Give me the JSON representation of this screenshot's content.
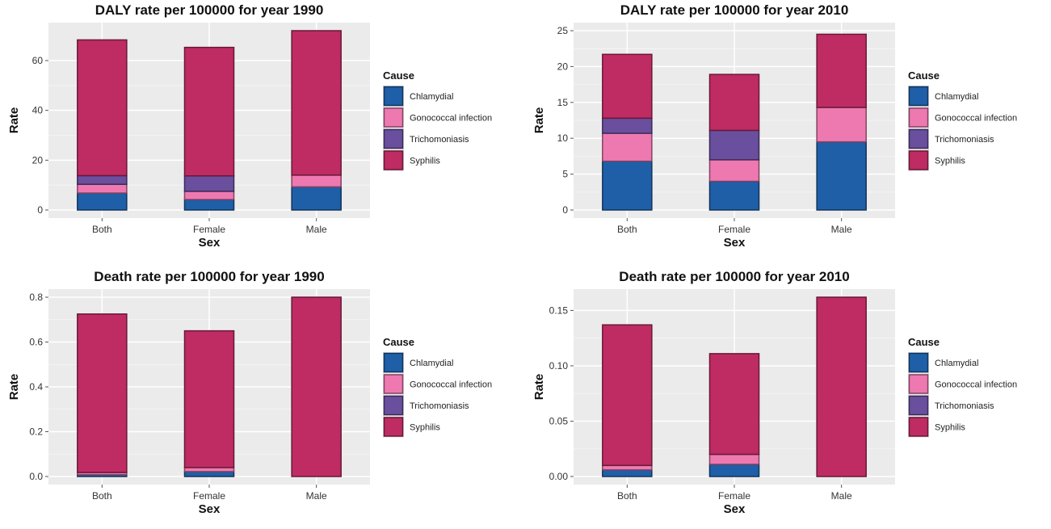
{
  "legend": {
    "title": "Cause",
    "items": [
      {
        "label": "Chlamydial",
        "color": "#1f5fa8"
      },
      {
        "label": "Gonococcal infection",
        "color": "#ee79b1"
      },
      {
        "label": "Trichomoniasis",
        "color": "#6a4f9e"
      },
      {
        "label": "Syphilis",
        "color": "#be2c63"
      }
    ]
  },
  "chart_data": [
    {
      "type": "bar",
      "stacked": true,
      "title": "DALY rate per 100000 for year 1990",
      "xlabel": "Sex",
      "ylabel": "Rate",
      "categories": [
        "Both",
        "Female",
        "Male"
      ],
      "ylim": [
        0,
        72
      ],
      "yticks": [
        0,
        20,
        40,
        60
      ],
      "ytick_labels": [
        "0",
        "20",
        "40",
        "60"
      ],
      "series": [
        {
          "name": "Chlamydial",
          "values": [
            6.8,
            4.2,
            9.3
          ]
        },
        {
          "name": "Gonococcal infection",
          "values": [
            3.5,
            3.3,
            4.7
          ]
        },
        {
          "name": "Trichomoniasis",
          "values": [
            3.5,
            6.2,
            0
          ]
        },
        {
          "name": "Syphilis",
          "values": [
            54.5,
            51.6,
            58.0
          ]
        }
      ],
      "grid": true,
      "legend_position": "right"
    },
    {
      "type": "bar",
      "stacked": true,
      "title": "DALY rate per 100000 for year 2010",
      "xlabel": "Sex",
      "ylabel": "Rate",
      "categories": [
        "Both",
        "Female",
        "Male"
      ],
      "ylim": [
        0,
        25
      ],
      "yticks": [
        0,
        5,
        10,
        15,
        20,
        25
      ],
      "ytick_labels": [
        "0",
        "5",
        "10",
        "15",
        "20",
        "25"
      ],
      "series": [
        {
          "name": "Chlamydial",
          "values": [
            6.8,
            4.0,
            9.5
          ]
        },
        {
          "name": "Gonococcal infection",
          "values": [
            3.9,
            3.0,
            4.8
          ]
        },
        {
          "name": "Trichomoniasis",
          "values": [
            2.1,
            4.1,
            0
          ]
        },
        {
          "name": "Syphilis",
          "values": [
            8.9,
            7.8,
            10.2
          ]
        }
      ],
      "grid": true,
      "legend_position": "right"
    },
    {
      "type": "bar",
      "stacked": true,
      "title": "Death rate per 100000 for year 1990",
      "xlabel": "Sex",
      "ylabel": "Rate",
      "categories": [
        "Both",
        "Female",
        "Male"
      ],
      "ylim": [
        0,
        0.8
      ],
      "yticks": [
        0,
        0.2,
        0.4,
        0.6,
        0.8
      ],
      "ytick_labels": [
        "0.0",
        "0.2",
        "0.4",
        "0.6",
        "0.8"
      ],
      "series": [
        {
          "name": "Chlamydial",
          "values": [
            0.008,
            0.022,
            0
          ]
        },
        {
          "name": "Gonococcal infection",
          "values": [
            0.01,
            0.018,
            0
          ]
        },
        {
          "name": "Trichomoniasis",
          "values": [
            0,
            0,
            0
          ]
        },
        {
          "name": "Syphilis",
          "values": [
            0.707,
            0.61,
            0.8
          ]
        }
      ],
      "grid": true,
      "legend_position": "right"
    },
    {
      "type": "bar",
      "stacked": true,
      "title": "Death rate per 100000 for year 2010",
      "xlabel": "Sex",
      "ylabel": "Rate",
      "categories": [
        "Both",
        "Female",
        "Male"
      ],
      "ylim": [
        0,
        0.162
      ],
      "yticks": [
        0,
        0.05,
        0.1,
        0.15
      ],
      "ytick_labels": [
        "0.00",
        "0.05",
        "0.10",
        "0.15"
      ],
      "series": [
        {
          "name": "Chlamydial",
          "values": [
            0.006,
            0.011,
            0
          ]
        },
        {
          "name": "Gonococcal infection",
          "values": [
            0.004,
            0.009,
            0
          ]
        },
        {
          "name": "Trichomoniasis",
          "values": [
            0,
            0,
            0
          ]
        },
        {
          "name": "Syphilis",
          "values": [
            0.127,
            0.091,
            0.162
          ]
        }
      ],
      "grid": true,
      "legend_position": "right"
    }
  ]
}
